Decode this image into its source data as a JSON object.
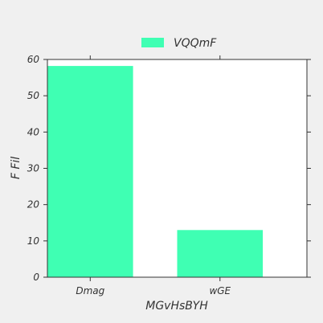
{
  "chart_data": {
    "type": "bar",
    "categories": [
      "Dmag",
      "wGE"
    ],
    "series": [
      {
        "name": "VQQmF",
        "values": [
          58.2,
          13.0
        ],
        "color": "#3fffb3"
      }
    ],
    "xlabel": "MGvHsBYH",
    "ylabel": "F Fil",
    "ylim": [
      0,
      60
    ],
    "yticks": [
      0,
      10,
      20,
      30,
      40,
      50,
      60
    ],
    "grid": false,
    "legend_position": "top-center"
  },
  "colors": {
    "background": "#f0f0f0",
    "plot_background": "#ffffff",
    "axis": "#333333"
  }
}
